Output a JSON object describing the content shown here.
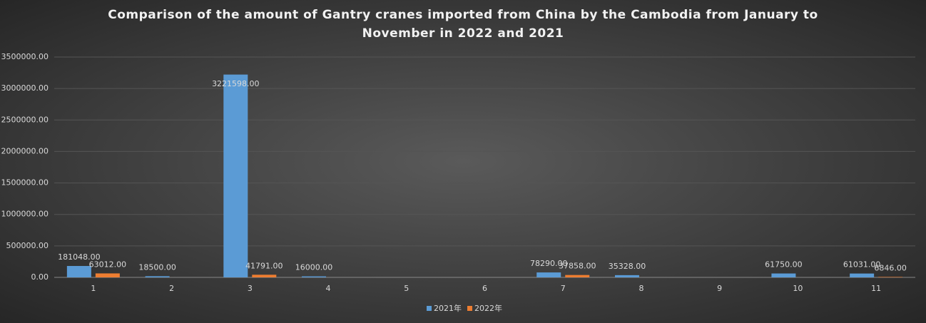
{
  "chart_data": {
    "type": "bar",
    "title": "Comparison of the amount of Gantry cranes imported from China by the Cambodia from January to November in 2022 and 2021",
    "categories": [
      "1",
      "2",
      "3",
      "4",
      "5",
      "6",
      "7",
      "8",
      "9",
      "10",
      "11"
    ],
    "series": [
      {
        "name": "2021年",
        "color": "#5b9bd5",
        "values": [
          181048,
          18500,
          3221598,
          16000,
          null,
          null,
          78290,
          35328,
          null,
          61750,
          61031
        ],
        "value_labels": [
          "181048.00",
          "18500.00",
          "3221598.00",
          "16000.00",
          null,
          null,
          "78290.00",
          "35328.00",
          null,
          "61750.00",
          "61031.00"
        ]
      },
      {
        "name": "2022年",
        "color": "#ed7d31",
        "values": [
          63012,
          null,
          41791,
          null,
          null,
          null,
          37858,
          null,
          null,
          null,
          6846
        ],
        "value_labels": [
          "63012.00",
          null,
          "41791.00",
          null,
          null,
          null,
          "37858.00",
          null,
          null,
          null,
          "6846.00"
        ]
      }
    ],
    "ylim": [
      0,
      3500000
    ],
    "yticks": [
      {
        "value": 0,
        "label": "0.00"
      },
      {
        "value": 500000,
        "label": "500000.00"
      },
      {
        "value": 1000000,
        "label": "1000000.00"
      },
      {
        "value": 1500000,
        "label": "1500000.00"
      },
      {
        "value": 2000000,
        "label": "2000000.00"
      },
      {
        "value": 2500000,
        "label": "2500000.00"
      },
      {
        "value": 3000000,
        "label": "3000000.00"
      },
      {
        "value": 3500000,
        "label": "3500000.00"
      }
    ],
    "grid": true,
    "legend": "bottom"
  }
}
